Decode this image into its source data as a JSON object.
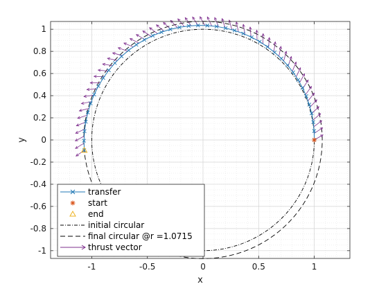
{
  "chart_data": {
    "type": "line",
    "title": "",
    "xlabel": "x",
    "ylabel": "y",
    "xlim": [
      -1.37,
      1.32
    ],
    "ylim": [
      -1.07,
      1.07
    ],
    "xticks": [
      -1,
      -0.5,
      0,
      0.5,
      1
    ],
    "xtick_labels": [
      "-1",
      "-0.5",
      "0",
      "0.5",
      "1"
    ],
    "yticks": [
      -1,
      -0.8,
      -0.6,
      -0.4,
      -0.2,
      0,
      0.2,
      0.4,
      0.6,
      0.8,
      1
    ],
    "ytick_labels": [
      "-1",
      "-0.8",
      "-0.6",
      "-0.4",
      "-0.2",
      "0",
      "0.2",
      "0.4",
      "0.6",
      "0.8",
      "1"
    ],
    "grid": true,
    "minor_grid": true,
    "legend_position": "bottom-left",
    "colors": {
      "transfer": "#1f77b4",
      "start": "#d95319",
      "end": "#edb120",
      "thrust": "#7e2f8e",
      "circles": "#000000"
    },
    "transfer": {
      "angle_start_deg": 0,
      "angle_end_deg": 185,
      "r_start": 1.0,
      "r_end": 1.0715,
      "points": 40
    },
    "start_point": {
      "x": 1.0,
      "y": 0.0
    },
    "end_point": {
      "x": -1.067,
      "y": -0.093
    },
    "initial_circular": {
      "r": 1.0
    },
    "final_circular": {
      "r": 1.0715
    },
    "thrust_vectors": {
      "count": 55,
      "length": 0.09
    },
    "legend": [
      {
        "key": "transfer",
        "label": "transfer",
        "style": "line-x"
      },
      {
        "key": "start",
        "label": "start",
        "style": "asterisk"
      },
      {
        "key": "end",
        "label": "end",
        "style": "triangle"
      },
      {
        "key": "initial",
        "label": "initial circular",
        "style": "dashdot"
      },
      {
        "key": "final",
        "label": "final circular @r =1.0715",
        "style": "dashed"
      },
      {
        "key": "thrust",
        "label": "thrust vector",
        "style": "arrow"
      }
    ]
  }
}
